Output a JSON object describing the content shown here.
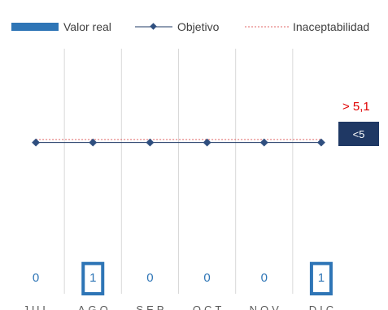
{
  "chart_data": {
    "type": "bar",
    "categories": [
      "JUL",
      "AGO",
      "SEP",
      "OCT",
      "NOV",
      "DIC"
    ],
    "series": [
      {
        "name": "Valor real",
        "type": "bar",
        "values": [
          0,
          1,
          0,
          0,
          0,
          1
        ]
      },
      {
        "name": "Objetivo",
        "type": "line",
        "values": [
          5,
          5,
          5,
          5,
          5,
          5
        ]
      },
      {
        "name": "Inaceptabilidad",
        "type": "line",
        "values": [
          5.1,
          5.1,
          5.1,
          5.1,
          5.1,
          5.1
        ]
      }
    ],
    "data_labels": [
      "0",
      "1",
      "0",
      "0",
      "0",
      "1"
    ],
    "annotations": {
      "threshold_label": "> 5,1",
      "target_label": "<5"
    },
    "ylim": [
      0,
      8.1
    ],
    "legend_position": "top",
    "grid": "vertical",
    "colors": {
      "bar_fill": "#FFFFFF",
      "bar_stroke": "#2E75B6",
      "legend_bar": "#2E75B6",
      "objective_line": "#1F3864",
      "objective_marker": "#2F4F7F",
      "unacceptable_line": "#E06666",
      "grid": "#D9D9D9",
      "target_box": "#1F3864",
      "threshold_text": "#E00000"
    }
  }
}
